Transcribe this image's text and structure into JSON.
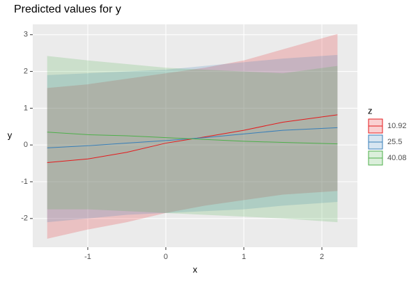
{
  "chart_data": {
    "type": "ribbon-line",
    "title": "Predicted values for y",
    "x_label": "x",
    "y_label": "y",
    "legend_title": "z",
    "x": [
      -1.52,
      -1.0,
      -0.5,
      0,
      0.5,
      1.0,
      1.5,
      2.2
    ],
    "series": [
      {
        "name": "10.92",
        "color": "#e41a1c",
        "values": [
          -0.48,
          -0.38,
          -0.2,
          0.05,
          0.22,
          0.4,
          0.62,
          0.82
        ],
        "lower": [
          -2.55,
          -2.3,
          -2.1,
          -1.85,
          -1.65,
          -1.5,
          -1.35,
          -1.25
        ],
        "upper": [
          1.55,
          1.65,
          1.8,
          1.95,
          2.1,
          2.3,
          2.6,
          3.02
        ]
      },
      {
        "name": "25.5",
        "color": "#377eb8",
        "values": [
          -0.08,
          -0.02,
          0.05,
          0.12,
          0.2,
          0.3,
          0.4,
          0.47
        ],
        "lower": [
          -2.1,
          -2.0,
          -1.9,
          -1.85,
          -1.8,
          -1.75,
          -1.65,
          -1.55
        ],
        "upper": [
          1.9,
          1.95,
          2.0,
          2.05,
          2.15,
          2.25,
          2.35,
          2.45
        ]
      },
      {
        "name": "40.08",
        "color": "#4daf4a",
        "values": [
          0.35,
          0.28,
          0.25,
          0.2,
          0.15,
          0.1,
          0.07,
          0.03
        ],
        "lower": [
          -1.75,
          -1.75,
          -1.8,
          -1.85,
          -1.9,
          -1.95,
          -2.0,
          -2.1
        ],
        "upper": [
          2.42,
          2.3,
          2.2,
          2.1,
          2.05,
          2.0,
          1.95,
          2.15
        ]
      }
    ],
    "xlim": [
      -1.705,
      2.455
    ],
    "xticks": [
      -1,
      0,
      1,
      2
    ],
    "ylim": [
      -2.78,
      3.28
    ],
    "yticks": [
      -2,
      -1,
      0,
      1,
      2,
      3
    ],
    "grid": true,
    "legend_position": "right"
  }
}
